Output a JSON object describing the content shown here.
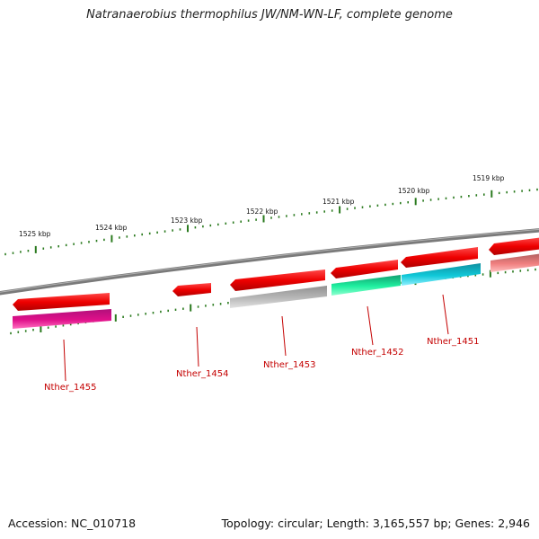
{
  "title": "Natranaerobius thermophilus JW/NM-WN-LF, complete genome",
  "footer": {
    "accession": "Accession: NC_010718",
    "summary": "Topology: circular; Length: 3,165,557 bp; Genes: 2,946"
  },
  "backbone_color": "#808080",
  "tick_color": "#2a7a1e",
  "scale_labels": [
    "1525 kbp",
    "1524 kbp",
    "1523 kbp",
    "1522 kbp",
    "1521 kbp",
    "1520 kbp",
    "1519 kbp"
  ],
  "gene_labels": [
    "Nther_1455",
    "Nther_1454",
    "Nther_1453",
    "Nther_1452",
    "Nther_1451"
  ],
  "colors": {
    "cds": "#ee0000",
    "label": "#c40000",
    "magenta": "#e0108a",
    "grey": "#b4b4b4",
    "mint": "#20f0a0",
    "cyan": "#10c8d8",
    "pink": "#f08080"
  }
}
